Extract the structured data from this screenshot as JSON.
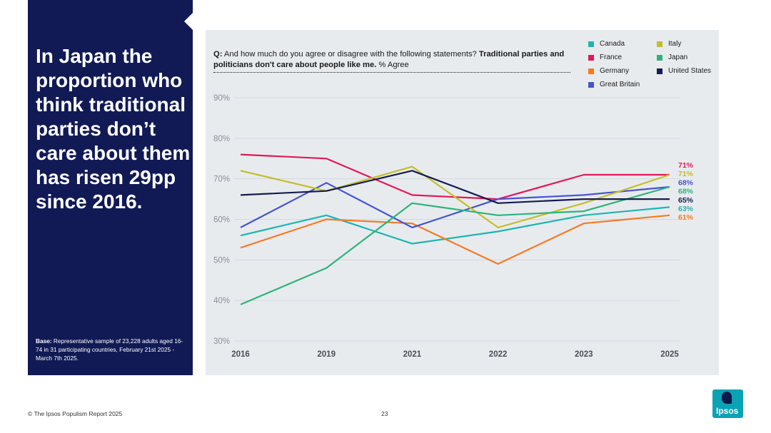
{
  "headline": "In Japan the proportion who think traditional parties don’t care about them has risen 29pp since 2016.",
  "base": {
    "label": "Base:",
    "text": " Representative sample of 23,228 adults aged 16-74 in 31 participating countries, February 21st 2025 - March 7th 2025."
  },
  "question": {
    "prefix": "Q:",
    "text": " And how much do you agree or disagree with the following statements? ",
    "bold_text": "Traditional parties and politicians don't care about people like me.",
    "suffix": " % Agree"
  },
  "footer": {
    "copyright": "© The Ipsos Populism Report 2025",
    "page_number": "23"
  },
  "logo": {
    "text": "Ipsos",
    "color": "#0aa3b4"
  },
  "chart_data": {
    "type": "line",
    "title": "",
    "xlabel": "",
    "ylabel": "",
    "x": [
      "2016",
      "2019",
      "2021",
      "2022",
      "2023",
      "2025"
    ],
    "ylim": [
      30,
      90
    ],
    "yticks": [
      30,
      40,
      50,
      60,
      70,
      80,
      90
    ],
    "ytick_labels": [
      "30%",
      "40%",
      "50%",
      "60%",
      "70%",
      "80%",
      "90%"
    ],
    "grid": true,
    "legend_position": "top-right",
    "series": [
      {
        "name": "Canada",
        "color": "#1fb5b0",
        "values": [
          56,
          61,
          54,
          57,
          61,
          63
        ],
        "end_label": "63%"
      },
      {
        "name": "France",
        "color": "#e0195a",
        "values": [
          76,
          75,
          66,
          65,
          71,
          71
        ],
        "end_label": "71%"
      },
      {
        "name": "Germany",
        "color": "#f47a20",
        "values": [
          53,
          60,
          59,
          49,
          59,
          61
        ],
        "end_label": "61%"
      },
      {
        "name": "Great Britain",
        "color": "#4754d1",
        "values": [
          58,
          69,
          58,
          65,
          66,
          68
        ],
        "end_label": "68%"
      },
      {
        "name": "Italy",
        "color": "#c4be2a",
        "values": [
          72,
          67,
          73,
          58,
          64,
          71
        ],
        "end_label": "71%"
      },
      {
        "name": "Japan",
        "color": "#2db37c",
        "values": [
          39,
          48,
          64,
          61,
          62,
          68
        ],
        "end_label": "68%"
      },
      {
        "name": "United States",
        "color": "#151d4f",
        "values": [
          66,
          67,
          72,
          64,
          65,
          65
        ],
        "end_label": "65%"
      }
    ]
  }
}
